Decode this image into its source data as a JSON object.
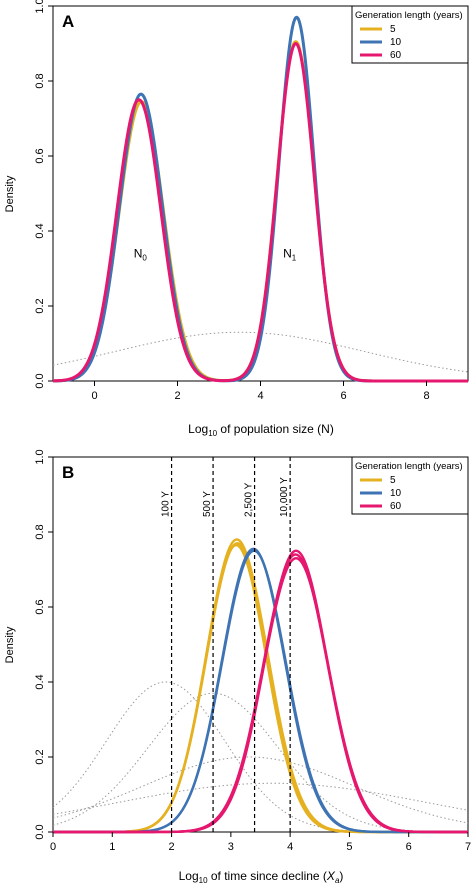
{
  "chart_data": [
    {
      "type": "line",
      "panel_label": "A",
      "xlabel_prefix": "Log",
      "xlabel_sub": "10",
      "xlabel_suffix": " of population size (N)",
      "ylabel": "Density",
      "xlim": [
        -1,
        9
      ],
      "ylim": [
        0,
        1
      ],
      "xticks": [
        0,
        2,
        4,
        6,
        8
      ],
      "yticks": [
        0.0,
        0.2,
        0.4,
        0.6,
        0.8,
        1.0
      ],
      "ytick_labels": [
        "0.0",
        "0.2",
        "0.4",
        "0.6",
        "0.8",
        "1.0"
      ],
      "grid": false,
      "legend": {
        "title": "Generation length (years)",
        "placement": "top-right",
        "entries": [
          "5",
          "10",
          "60"
        ]
      },
      "annotations": [
        {
          "text": "N",
          "sub": "0",
          "x": 1.2,
          "y": 0.33
        },
        {
          "text": "N",
          "sub": "1",
          "x": 4.8,
          "y": 0.33
        }
      ],
      "series": [
        {
          "name": "5",
          "color": "#E6B120",
          "peaks": [
            {
              "mu": 1.13,
              "sigma": 0.535,
              "height": 0.745
            },
            {
              "mu": 4.85,
              "sigma": 0.445,
              "height": 0.905
            }
          ]
        },
        {
          "name": "10",
          "color": "#3E73B4",
          "peaks": [
            {
              "mu": 1.12,
              "sigma": 0.52,
              "height": 0.765
            },
            {
              "mu": 4.87,
              "sigma": 0.42,
              "height": 0.97
            }
          ]
        },
        {
          "name": "60",
          "color": "#E5176E",
          "peaks": [
            {
              "mu": 1.07,
              "sigma": 0.53,
              "height": 0.75
            },
            {
              "mu": 4.85,
              "sigma": 0.445,
              "height": 0.9
            }
          ]
        }
      ],
      "prior_curves": [
        {
          "mu": 3.5,
          "sigma": 3.0,
          "height": 0.13
        }
      ]
    },
    {
      "type": "line",
      "panel_label": "B",
      "xlabel_prefix": "Log",
      "xlabel_sub": "10",
      "xlabel_suffix": " of time since decline (",
      "xlabel_var": "X",
      "xlabel_var_sub": "a",
      "xlabel_close": ")",
      "ylabel": "Density",
      "xlim": [
        0,
        7
      ],
      "ylim": [
        0,
        1
      ],
      "xticks": [
        0,
        1,
        2,
        3,
        4,
        5,
        6,
        7
      ],
      "yticks": [
        0.0,
        0.2,
        0.4,
        0.6,
        0.8,
        1.0
      ],
      "ytick_labels": [
        "0.0",
        "0.2",
        "0.4",
        "0.6",
        "0.8",
        "1.0"
      ],
      "grid": false,
      "legend": {
        "title": "Generation length (years)",
        "placement": "top-right",
        "entries": [
          "5",
          "10",
          "60"
        ]
      },
      "vlines": [
        {
          "x": 2.0,
          "label": "100 Y"
        },
        {
          "x": 2.7,
          "label": "500 Y"
        },
        {
          "x": 3.4,
          "label": "2,500 Y"
        },
        {
          "x": 4.0,
          "label": "10,000 Y"
        }
      ],
      "series": [
        {
          "name": "5",
          "color": "#E6B120",
          "peaks": [
            {
              "mu": 3.1,
              "sigma": 0.515,
              "height": 0.78
            },
            {
              "mu": 3.11,
              "sigma": 0.52,
              "height": 0.77
            },
            {
              "mu": 3.09,
              "sigma": 0.51,
              "height": 0.765
            }
          ]
        },
        {
          "name": "10",
          "color": "#3E73B4",
          "peaks": [
            {
              "mu": 3.38,
              "sigma": 0.53,
              "height": 0.755
            },
            {
              "mu": 3.39,
              "sigma": 0.535,
              "height": 0.75
            }
          ]
        },
        {
          "name": "60",
          "color": "#E5176E",
          "peaks": [
            {
              "mu": 4.1,
              "sigma": 0.53,
              "height": 0.75
            },
            {
              "mu": 4.09,
              "sigma": 0.54,
              "height": 0.74
            },
            {
              "mu": 4.1,
              "sigma": 0.545,
              "height": 0.73
            }
          ]
        }
      ],
      "prior_curves": [
        {
          "mu": 1.9,
          "sigma": 1.0,
          "height": 0.4
        },
        {
          "mu": 2.7,
          "sigma": 1.1,
          "height": 0.37
        },
        {
          "mu": 3.3,
          "sigma": 1.8,
          "height": 0.2
        },
        {
          "mu": 3.7,
          "sigma": 2.6,
          "height": 0.13
        }
      ]
    }
  ],
  "colors": {
    "series_5": "#E6B120",
    "series_10": "#3E73B4",
    "series_60": "#E5176E",
    "prior": "#9a9a9a"
  }
}
